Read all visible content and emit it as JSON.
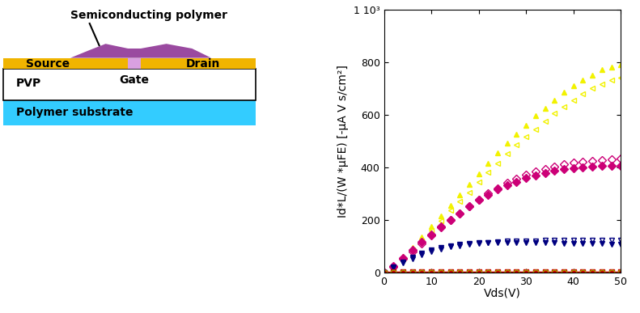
{
  "chart_data": {
    "type": "line",
    "x_label": "Vds(V)",
    "y_label": "Id*L/(W *μFE) [-μA V s/cm²]",
    "xlim": [
      0,
      50
    ],
    "xticks": [
      0,
      10,
      20,
      30,
      40,
      50
    ],
    "ylim": [
      0,
      1000
    ],
    "yticks": [
      0,
      200,
      400,
      600,
      800,
      {
        "value": 1000,
        "label": "1 10³"
      }
    ],
    "grid": false,
    "x": [
      0,
      2,
      4,
      6,
      8,
      10,
      12,
      14,
      16,
      18,
      20,
      22,
      24,
      26,
      28,
      30,
      32,
      34,
      36,
      38,
      40,
      42,
      44,
      46,
      48,
      50
    ],
    "series": [
      {
        "color": "#f2f200",
        "marker": "triangle_up_filled",
        "line_style": "none",
        "values": [
          0,
          25,
          60,
          95,
          135,
          175,
          215,
          255,
          295,
          335,
          375,
          415,
          455,
          490,
          525,
          560,
          595,
          625,
          655,
          685,
          710,
          730,
          750,
          770,
          780,
          790
        ]
      },
      {
        "color": "#f2f200",
        "marker": "triangle_left_open",
        "line_style": "none",
        "values": [
          0,
          20,
          50,
          85,
          120,
          160,
          195,
          235,
          270,
          305,
          345,
          380,
          415,
          450,
          485,
          515,
          545,
          575,
          605,
          630,
          655,
          680,
          700,
          715,
          730,
          740
        ]
      },
      {
        "color": "#cc0077",
        "marker": "diamond_filled",
        "line_style": "none",
        "values": [
          0,
          25,
          55,
          85,
          115,
          145,
          175,
          200,
          225,
          250,
          275,
          295,
          315,
          330,
          345,
          358,
          368,
          378,
          386,
          392,
          397,
          400,
          402,
          404,
          405,
          405
        ]
      },
      {
        "color": "#cc0077",
        "marker": "diamond_open",
        "line_style": "none",
        "values": [
          0,
          22,
          50,
          80,
          110,
          140,
          170,
          200,
          225,
          250,
          275,
          300,
          320,
          340,
          355,
          370,
          383,
          393,
          402,
          410,
          416,
          421,
          425,
          428,
          430,
          432
        ]
      },
      {
        "color": "#000080",
        "marker": "triangle_down_filled",
        "line_style": "none",
        "values": [
          0,
          20,
          40,
          58,
          72,
          84,
          94,
          101,
          106,
          110,
          112,
          113,
          114,
          114,
          114,
          113,
          113,
          112,
          112,
          111,
          111,
          110,
          110,
          109,
          108,
          107
        ]
      },
      {
        "color": "#000080",
        "marker": "triangle_down_open",
        "line_style": "none",
        "values": [
          0,
          18,
          36,
          52,
          66,
          78,
          88,
          96,
          102,
          107,
          111,
          114,
          116,
          118,
          119,
          120,
          120,
          121,
          121,
          121,
          122,
          122,
          122,
          122,
          122,
          122
        ]
      },
      {
        "color": "#cc0000",
        "marker": "square_filled",
        "line_style": "solid",
        "values": [
          0,
          1,
          1,
          1,
          1,
          1,
          1,
          1,
          1,
          1,
          1,
          1,
          1,
          1,
          1,
          1,
          1,
          1,
          1,
          1,
          1,
          1,
          1,
          1,
          1,
          1
        ]
      },
      {
        "color": "#a0a000",
        "marker": "circle_open",
        "line_style": "none",
        "values": [
          0,
          0,
          0,
          0,
          0,
          0,
          0,
          0,
          0,
          0,
          0,
          0,
          0,
          0,
          0,
          0,
          0,
          0,
          0,
          0,
          0,
          0,
          0,
          0,
          0,
          0
        ]
      }
    ]
  },
  "diagram": {
    "labels": {
      "semiconductor": "Semiconducting polymer",
      "source": "Source",
      "drain": "Drain",
      "dielectric": "PVP",
      "gate": "Gate",
      "substrate": "Polymer substrate"
    }
  }
}
